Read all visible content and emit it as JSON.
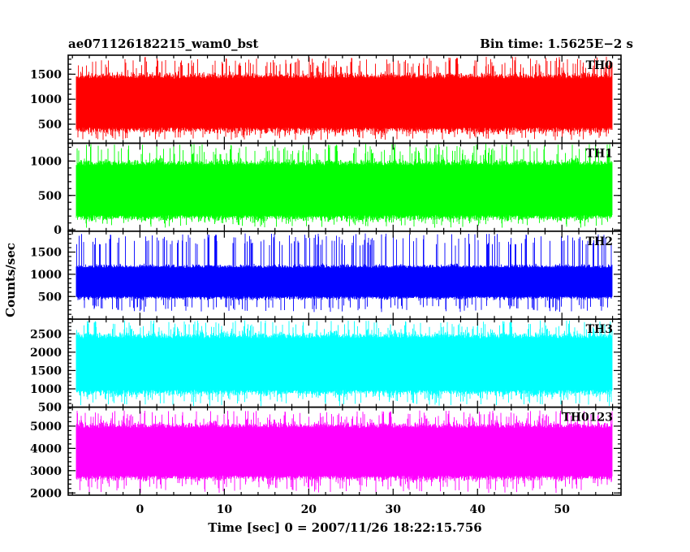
{
  "chart_data": {
    "type": "line",
    "title_left": "ae071126182215_wam0_bst",
    "title_right": "Bin time: 1.5625E−2 s",
    "xlabel": "Time [sec] 0 = 2007/11/26 18:22:15.756",
    "ylabel": "Counts/sec",
    "xlim": [
      -8.5,
      57
    ],
    "x_ticks": [
      0,
      10,
      20,
      30,
      40,
      50
    ],
    "x_tick_labels": [
      "0",
      "10",
      "20",
      "30",
      "40",
      "50"
    ],
    "data_x_range": [
      -7.5,
      55.9
    ],
    "bin_time": 0.015625,
    "grid": false,
    "panels": [
      {
        "name": "TH0",
        "color": "#ff0000",
        "ylim": [
          120,
          1880
        ],
        "y_ticks": [
          500,
          1000,
          1500
        ],
        "y_tick_labels": [
          "500",
          "1000",
          "1500"
        ],
        "approx_range": [
          180,
          1850
        ],
        "dense_range": [
          350,
          1500
        ]
      },
      {
        "name": "TH1",
        "color": "#00ff00",
        "ylim": [
          -20,
          1260
        ],
        "y_ticks": [
          0,
          500,
          1000
        ],
        "y_tick_labels": [
          "0",
          "500",
          "1000"
        ],
        "approx_range": [
          30,
          1250
        ],
        "dense_range": [
          150,
          1000
        ]
      },
      {
        "name": "TH2",
        "color": "#0000ff",
        "ylim": [
          -10,
          1970
        ],
        "y_ticks": [
          500,
          1000,
          1500
        ],
        "y_tick_labels": [
          "500",
          "1000",
          "1500"
        ],
        "approx_range": [
          150,
          1920
        ],
        "dense_range": [
          450,
          1200
        ]
      },
      {
        "name": "TH3",
        "color": "#00ffff",
        "ylim": [
          500,
          2900
        ],
        "y_ticks": [
          500,
          1000,
          1500,
          2000,
          2500
        ],
        "y_tick_labels": [
          "500",
          "1000",
          "1500",
          "2000",
          "2500"
        ],
        "approx_range": [
          530,
          2870
        ],
        "dense_range": [
          850,
          2500
        ]
      },
      {
        "name": "TH0123",
        "color": "#ff00ff",
        "ylim": [
          1900,
          5850
        ],
        "y_ticks": [
          2000,
          3000,
          4000,
          5000
        ],
        "y_tick_labels": [
          "2000",
          "3000",
          "4000",
          "5000"
        ],
        "approx_range": [
          2000,
          5700
        ],
        "dense_range": [
          2600,
          5100
        ]
      }
    ]
  }
}
